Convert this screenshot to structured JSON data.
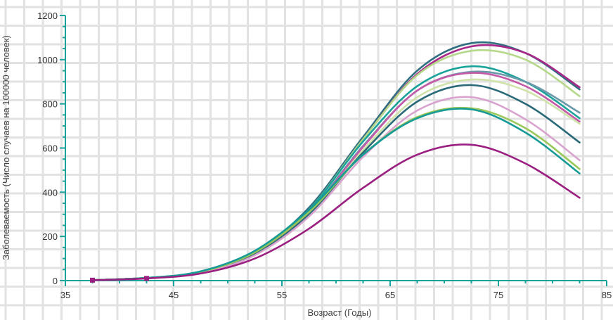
{
  "chart_data": {
    "type": "line",
    "xlabel": "Возраст (Годы)",
    "ylabel": "Заболеваемость (Число случаев на 100000 человек)",
    "xlim": [
      35,
      85
    ],
    "ylim": [
      0,
      1200
    ],
    "xticks": [
      35,
      45,
      55,
      65,
      75,
      85
    ],
    "yticks": [
      0,
      200,
      400,
      600,
      800,
      1000,
      1200
    ],
    "x": [
      37.5,
      42.5,
      47.5,
      52.5,
      57.5,
      62.5,
      67.5,
      72.5,
      77.5,
      82.5
    ],
    "grid": true,
    "legend": "none",
    "axis_color": "#1aa39a",
    "series": [
      {
        "color": "#2f6f80",
        "values": [
          2,
          12,
          40,
          130,
          330,
          650,
          950,
          1075,
          1030,
          865
        ]
      },
      {
        "color": "#a8288a",
        "values": [
          2,
          12,
          38,
          125,
          320,
          640,
          935,
          1060,
          1030,
          875
        ]
      },
      {
        "color": "#b5d88a",
        "values": [
          2,
          12,
          38,
          125,
          320,
          640,
          930,
          1040,
          1000,
          835
        ]
      },
      {
        "color": "#1aa39a",
        "values": [
          2,
          12,
          38,
          125,
          320,
          630,
          880,
          970,
          900,
          735
        ]
      },
      {
        "color": "#6a9aaa",
        "values": [
          2,
          12,
          38,
          122,
          310,
          610,
          860,
          945,
          900,
          760
        ]
      },
      {
        "color": "#c45aa8",
        "values": [
          2,
          12,
          37,
          120,
          305,
          605,
          860,
          940,
          880,
          720
        ]
      },
      {
        "color": "#cfe3a8",
        "values": [
          2,
          11,
          36,
          118,
          300,
          590,
          830,
          910,
          860,
          710
        ]
      },
      {
        "color": "#2a6a78",
        "values": [
          2,
          12,
          37,
          120,
          300,
          580,
          810,
          885,
          800,
          625
        ]
      },
      {
        "color": "#d9a3cf",
        "values": [
          2,
          11,
          35,
          115,
          290,
          560,
          770,
          830,
          730,
          545
        ]
      },
      {
        "color": "#9ac85a",
        "values": [
          2,
          12,
          40,
          128,
          310,
          570,
          740,
          780,
          690,
          505
        ]
      },
      {
        "color": "#159a96",
        "values": [
          2,
          12,
          42,
          135,
          320,
          570,
          735,
          775,
          670,
          485
        ]
      },
      {
        "color": "#9a1f80",
        "values": [
          2,
          10,
          32,
          100,
          235,
          420,
          570,
          615,
          530,
          375
        ]
      }
    ]
  }
}
